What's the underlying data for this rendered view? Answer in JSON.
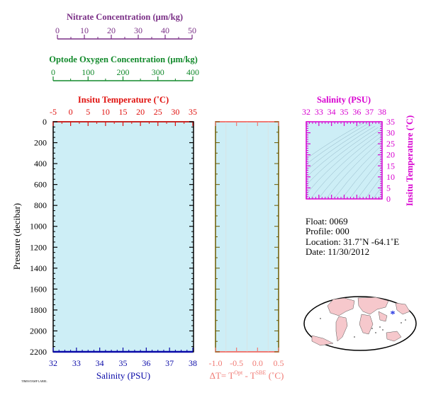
{
  "colors": {
    "panel_fill": "#cdeef6",
    "nitrate": "#7a2f86",
    "oxygen": "#138a2c",
    "temperature": "#e0100d",
    "salinity_axis": "#0a0aa8",
    "dt": "#f07a74",
    "dt_frame": "#6b5a00",
    "ts": "#d800d0",
    "black": "#000000",
    "land": "#f6c8cc",
    "ocean": "#ffffff",
    "float_marker": "#1a2be0"
  },
  "chart_data": [
    {
      "type": "line",
      "name": "profile",
      "ylabel": "Pressure (decibar)",
      "ylim": [
        2200,
        0
      ],
      "yticks": [
        "0",
        "200",
        "400",
        "600",
        "800",
        "1000",
        "1200",
        "1400",
        "1600",
        "1800",
        "2000",
        "2200"
      ],
      "grid": false,
      "axes": {
        "nitrate": {
          "label": "Nitrate Concentration (μm/kg)",
          "range": [
            0,
            50
          ],
          "ticks": [
            "0",
            "10",
            "20",
            "30",
            "40",
            "50"
          ]
        },
        "oxygen": {
          "label": "Optode Oxygen Concentration (μm/kg)",
          "range": [
            0,
            400
          ],
          "ticks": [
            "0",
            "100",
            "200",
            "300",
            "400"
          ]
        },
        "temperature": {
          "label": "Insitu Temperature (˚C)",
          "range": [
            -5,
            35
          ],
          "ticks": [
            "-5",
            "0",
            "5",
            "10",
            "15",
            "20",
            "25",
            "30",
            "35"
          ]
        },
        "salinity": {
          "label": "Salinity (PSU)",
          "range": [
            32,
            38
          ],
          "ticks": [
            "32",
            "33",
            "34",
            "35",
            "36",
            "37",
            "38"
          ]
        }
      },
      "series": []
    },
    {
      "type": "line",
      "name": "temperature-difference",
      "xlim": [
        -1.0,
        0.5
      ],
      "xticks": [
        "-1.0",
        "-0.5",
        "0.0",
        "0.5"
      ],
      "xlabel_parts": {
        "base": "ΔT= T",
        "sup1": "Opt",
        "mid": " - T",
        "sup2": "SBE",
        "unit": " (˚C)"
      },
      "ylim": [
        2200,
        0
      ],
      "series": []
    },
    {
      "type": "scatter",
      "name": "t-s-diagram",
      "title": "Salinity (PSU)",
      "ylabel": "Insitu Temperature (˚C)",
      "xlim": [
        32,
        38
      ],
      "ylim": [
        0,
        35
      ],
      "xticks": [
        "32",
        "33",
        "34",
        "35",
        "36",
        "37",
        "38"
      ],
      "yticks": [
        "0",
        "5",
        "10",
        "15",
        "20",
        "25",
        "30",
        "35"
      ],
      "series": []
    }
  ],
  "info": {
    "float": "Float:  0069",
    "profile": "Profile:  000",
    "location": "Location:  31.7˚N  -64.1˚E",
    "date": "Date:  11/30/2012"
  },
  "map": {
    "marker_lat": 31.7,
    "marker_lon": -64.1,
    "marker_glyph": "*"
  },
  "footer": {
    "tiny_label": "TIMESTAMP LABEL"
  }
}
